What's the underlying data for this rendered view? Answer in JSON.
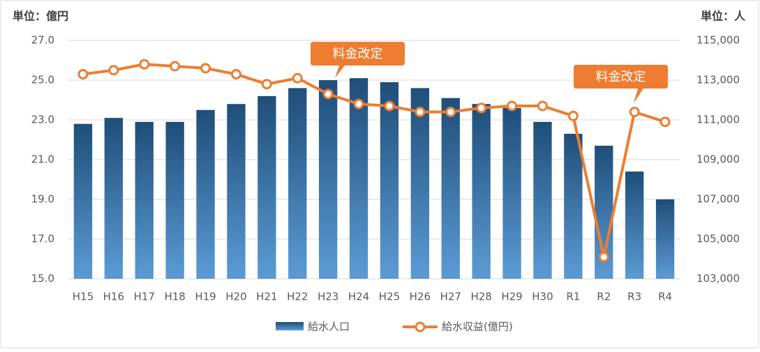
{
  "chart_data": {
    "type": "bar-line",
    "y_unit": "単位：億円",
    "y2_unit": "単位：人",
    "categories": [
      "H15",
      "H16",
      "H17",
      "H18",
      "H19",
      "H20",
      "H21",
      "H22",
      "H23",
      "H24",
      "H25",
      "H26",
      "H27",
      "H28",
      "H29",
      "H30",
      "R1",
      "R2",
      "R3",
      "R4"
    ],
    "series": [
      {
        "name": "給水人口",
        "type": "bar",
        "axis": "y2",
        "color": "#1f4e79",
        "values": [
          110800,
          111100,
          110900,
          110900,
          111500,
          111800,
          112200,
          112600,
          113000,
          113100,
          112900,
          112600,
          112100,
          111800,
          111600,
          110900,
          110300,
          109700,
          108400,
          107000
        ]
      },
      {
        "name": "給水収益(億円)",
        "type": "line",
        "axis": "y",
        "color": "#ed7d31",
        "values": [
          25.3,
          25.5,
          25.8,
          25.7,
          25.6,
          25.3,
          24.8,
          25.1,
          24.3,
          23.8,
          23.7,
          23.4,
          23.4,
          23.6,
          23.7,
          23.7,
          23.2,
          16.1,
          23.4,
          22.9
        ]
      }
    ],
    "ylim": [
      15,
      27
    ],
    "yticks": [
      {
        "value": 15,
        "label": "15.0"
      },
      {
        "value": 17,
        "label": "17.0"
      },
      {
        "value": 19,
        "label": "19.0"
      },
      {
        "value": 21,
        "label": "21.0"
      },
      {
        "value": 23,
        "label": "23.0"
      },
      {
        "value": 25,
        "label": "25.0"
      },
      {
        "value": 27,
        "label": "27.0"
      }
    ],
    "y2lim": [
      103000,
      115000
    ],
    "y2ticks": [
      {
        "value": 103000,
        "label": "103,000"
      },
      {
        "value": 105000,
        "label": "105,000"
      },
      {
        "value": 107000,
        "label": "107,000"
      },
      {
        "value": 109000,
        "label": "109,000"
      },
      {
        "value": 111000,
        "label": "111,000"
      },
      {
        "value": 113000,
        "label": "113,000"
      },
      {
        "value": 115000,
        "label": "115,000"
      }
    ],
    "grid": true,
    "annotations": [
      "料金改定",
      "料金改定"
    ]
  }
}
